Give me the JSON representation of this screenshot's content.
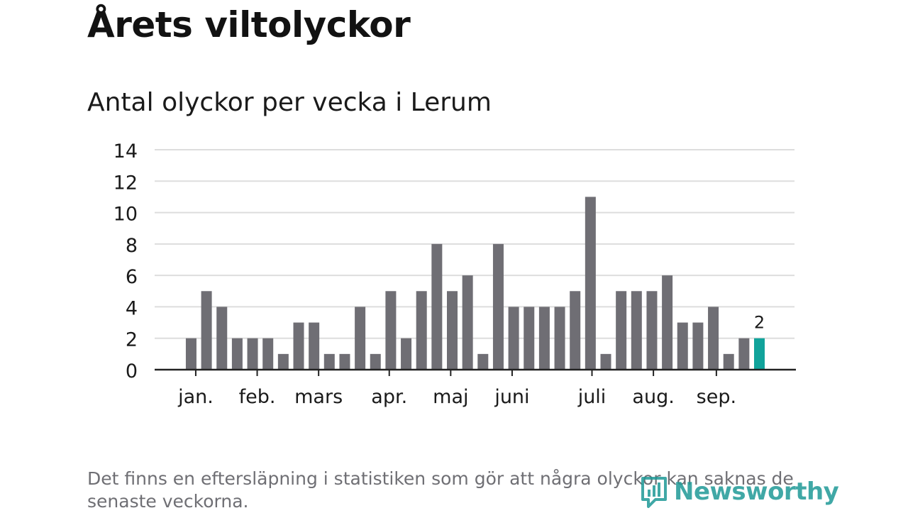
{
  "title": "Årets viltolyckor",
  "subtitle": "Antal olyckor per vecka i Lerum",
  "footnote": "Det finns en eftersläpning i statistiken som gör att några olyckor kan saknas de senaste veckorna.",
  "brand": {
    "name": "Newsworthy",
    "color": "#1f9a97"
  },
  "colors": {
    "bar": "#6f6e74",
    "highlight": "#11a39b",
    "grid": "#dddddd",
    "axis": "#222222",
    "text": "#1a1a1a"
  },
  "chart_data": {
    "type": "bar",
    "title": "Antal olyckor per vecka i Lerum",
    "xlabel": "",
    "ylabel": "",
    "ylim": [
      0,
      14
    ],
    "yticks": [
      "0",
      "2",
      "4",
      "6",
      "8",
      "10",
      "12",
      "14"
    ],
    "grid": true,
    "weeks": [
      1,
      2,
      3,
      4,
      5,
      6,
      7,
      8,
      9,
      10,
      11,
      12,
      13,
      14,
      15,
      16,
      17,
      18,
      19,
      20,
      21,
      22,
      23,
      24,
      25,
      26,
      27,
      28,
      29,
      30,
      31,
      32,
      33,
      34,
      35,
      36,
      37,
      38,
      39,
      40,
      41
    ],
    "values": [
      null,
      2,
      5,
      4,
      2,
      2,
      2,
      1,
      3,
      3,
      1,
      1,
      4,
      1,
      5,
      2,
      5,
      8,
      5,
      6,
      1,
      8,
      4,
      4,
      4,
      4,
      5,
      11,
      1,
      5,
      5,
      5,
      6,
      3,
      3,
      4,
      1,
      2,
      2,
      null,
      null
    ],
    "highlight_index": 38,
    "highlight_label": "2",
    "month_labels": [
      {
        "label": "jan.",
        "pos": 2.3
      },
      {
        "label": "feb.",
        "pos": 6.3
      },
      {
        "label": "mars",
        "pos": 10.3
      },
      {
        "label": "apr.",
        "pos": 14.9
      },
      {
        "label": "maj",
        "pos": 18.9
      },
      {
        "label": "juni",
        "pos": 22.9
      },
      {
        "label": "juli",
        "pos": 28.1
      },
      {
        "label": "aug.",
        "pos": 32.1
      },
      {
        "label": "sep.",
        "pos": 36.2
      }
    ]
  }
}
